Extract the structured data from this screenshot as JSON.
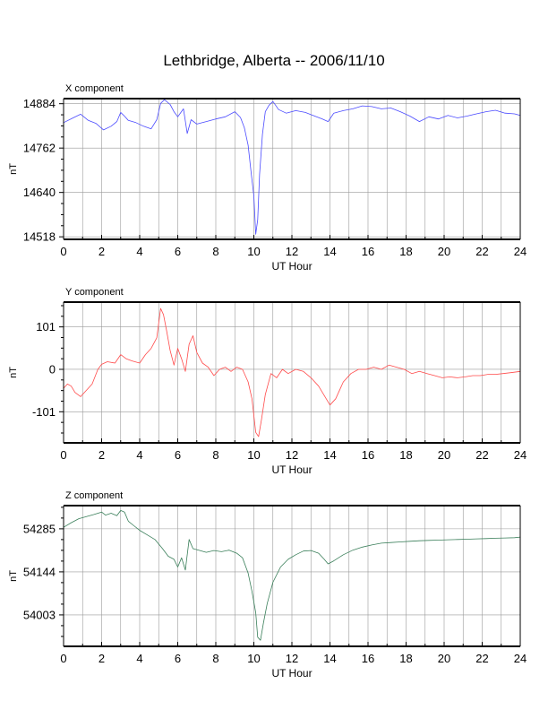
{
  "title": "Lethbridge, Alberta -- 2006/11/10",
  "chart_data": [
    {
      "type": "line",
      "title": "X component",
      "xlabel": "UT Hour",
      "ylabel": "nT",
      "xlim": [
        0,
        24
      ],
      "ylim": [
        14511,
        14898
      ],
      "xticks": [
        0,
        2,
        4,
        6,
        8,
        10,
        12,
        14,
        16,
        18,
        20,
        22,
        24
      ],
      "yticks": [
        14518,
        14640,
        14762,
        14884
      ],
      "grid": true,
      "color": "#4a4aff",
      "series": [
        {
          "x": [
            0,
            0.5,
            0.9,
            1.3,
            1.7,
            2.1,
            2.5,
            2.8,
            3.0,
            3.2,
            3.4,
            3.8,
            4.2,
            4.6,
            4.9,
            5.1,
            5.3,
            5.6,
            5.8,
            6.0,
            6.3,
            6.5,
            6.7,
            7.0,
            7.5,
            8.0,
            8.5,
            9.0,
            9.3,
            9.5,
            9.7,
            9.85,
            10.0,
            10.1,
            10.2,
            10.3,
            10.45,
            10.6,
            10.8,
            11.0,
            11.3,
            11.7,
            12.2,
            12.7,
            13.2,
            13.6,
            13.9,
            14.2,
            14.7,
            15.2,
            15.7,
            16.2,
            16.7,
            17.2,
            17.7,
            18.2,
            18.7,
            19.2,
            19.7,
            20.2,
            20.7,
            21.2,
            21.7,
            22.2,
            22.7,
            23.2,
            23.7,
            24.0
          ],
          "y": [
            14832,
            14845,
            14855,
            14838,
            14830,
            14812,
            14822,
            14835,
            14860,
            14850,
            14838,
            14832,
            14822,
            14815,
            14840,
            14885,
            14895,
            14882,
            14862,
            14848,
            14870,
            14802,
            14840,
            14828,
            14835,
            14842,
            14848,
            14862,
            14846,
            14818,
            14770,
            14698,
            14630,
            14525,
            14565,
            14690,
            14800,
            14862,
            14880,
            14890,
            14868,
            14858,
            14865,
            14860,
            14850,
            14842,
            14835,
            14858,
            14865,
            14870,
            14878,
            14876,
            14870,
            14872,
            14862,
            14850,
            14835,
            14848,
            14842,
            14852,
            14845,
            14850,
            14856,
            14862,
            14866,
            14858,
            14856,
            14852
          ]
        }
      ]
    },
    {
      "type": "line",
      "title": "Y component",
      "xlabel": "UT Hour",
      "ylabel": "nT",
      "xlim": [
        0,
        24
      ],
      "ylim": [
        -175,
        160
      ],
      "xticks": [
        0,
        2,
        4,
        6,
        8,
        10,
        12,
        14,
        16,
        18,
        20,
        22,
        24
      ],
      "yticks": [
        -101,
        0,
        101
      ],
      "grid": true,
      "color": "#ff4a4a",
      "series": [
        {
          "x": [
            0,
            0.2,
            0.4,
            0.6,
            0.9,
            1.2,
            1.5,
            1.8,
            2.0,
            2.3,
            2.7,
            3.0,
            3.3,
            3.6,
            4.0,
            4.3,
            4.6,
            4.9,
            5.1,
            5.25,
            5.4,
            5.6,
            5.8,
            6.0,
            6.2,
            6.4,
            6.6,
            6.8,
            7.0,
            7.3,
            7.6,
            7.9,
            8.2,
            8.5,
            8.8,
            9.1,
            9.4,
            9.7,
            9.9,
            10.1,
            10.25,
            10.4,
            10.6,
            10.9,
            11.2,
            11.5,
            11.8,
            12.2,
            12.6,
            13.0,
            13.4,
            13.8,
            14.0,
            14.3,
            14.7,
            15.1,
            15.5,
            15.9,
            16.3,
            16.7,
            17.1,
            17.5,
            17.9,
            18.3,
            18.7,
            19.1,
            19.5,
            19.9,
            20.3,
            20.7,
            21.1,
            21.5,
            21.9,
            22.3,
            22.7,
            23.1,
            23.5,
            24.0
          ],
          "y": [
            -45,
            -35,
            -40,
            -55,
            -65,
            -50,
            -35,
            0,
            12,
            18,
            15,
            35,
            25,
            20,
            15,
            35,
            50,
            75,
            145,
            130,
            95,
            45,
            10,
            50,
            25,
            -5,
            60,
            80,
            40,
            15,
            5,
            -15,
            0,
            5,
            -5,
            5,
            0,
            -30,
            -70,
            -150,
            -160,
            -120,
            -60,
            -10,
            -20,
            0,
            -10,
            0,
            -5,
            -20,
            -40,
            -70,
            -85,
            -70,
            -30,
            -10,
            0,
            0,
            5,
            0,
            10,
            5,
            0,
            -10,
            -5,
            -10,
            -15,
            -20,
            -18,
            -20,
            -18,
            -15,
            -15,
            -12,
            -12,
            -10,
            -8,
            -5
          ]
        }
      ]
    },
    {
      "type": "line",
      "title": "Z component",
      "xlabel": "UT Hour",
      "ylabel": "nT",
      "xlim": [
        0,
        24
      ],
      "ylim": [
        53900,
        54361
      ],
      "xticks": [
        0,
        2,
        4,
        6,
        8,
        10,
        12,
        14,
        16,
        18,
        20,
        22,
        24
      ],
      "yticks": [
        54003,
        54144,
        54285
      ],
      "grid": true,
      "color": "#3a7f5a",
      "series": [
        {
          "x": [
            0,
            0.4,
            0.8,
            1.2,
            1.6,
            2.0,
            2.2,
            2.5,
            2.8,
            3.0,
            3.2,
            3.4,
            3.7,
            4.0,
            4.4,
            4.8,
            5.2,
            5.5,
            5.8,
            6.0,
            6.2,
            6.4,
            6.6,
            6.8,
            7.1,
            7.5,
            7.9,
            8.3,
            8.7,
            9.1,
            9.4,
            9.7,
            9.9,
            10.1,
            10.2,
            10.35,
            10.5,
            10.7,
            11.0,
            11.4,
            11.8,
            12.2,
            12.6,
            13.0,
            13.4,
            13.7,
            13.9,
            14.2,
            14.7,
            15.2,
            15.7,
            16.2,
            16.7,
            17.2,
            17.7,
            18.2,
            18.7,
            19.2,
            19.7,
            20.2,
            20.7,
            21.2,
            21.7,
            22.2,
            22.7,
            23.2,
            23.7,
            24.0
          ],
          "y": [
            54290,
            54305,
            54318,
            54325,
            54332,
            54340,
            54330,
            54336,
            54328,
            54345,
            54340,
            54310,
            54295,
            54280,
            54265,
            54250,
            54220,
            54195,
            54185,
            54160,
            54190,
            54150,
            54250,
            54220,
            54215,
            54208,
            54214,
            54210,
            54215,
            54205,
            54190,
            54140,
            54080,
            54010,
            53930,
            53920,
            53975,
            54040,
            54110,
            54160,
            54185,
            54200,
            54212,
            54214,
            54205,
            54185,
            54170,
            54180,
            54200,
            54215,
            54225,
            54232,
            54238,
            54240,
            54242,
            54244,
            54246,
            54247,
            54248,
            54249,
            54250,
            54251,
            54252,
            54253,
            54254,
            54255,
            54256,
            54258
          ]
        }
      ]
    }
  ]
}
